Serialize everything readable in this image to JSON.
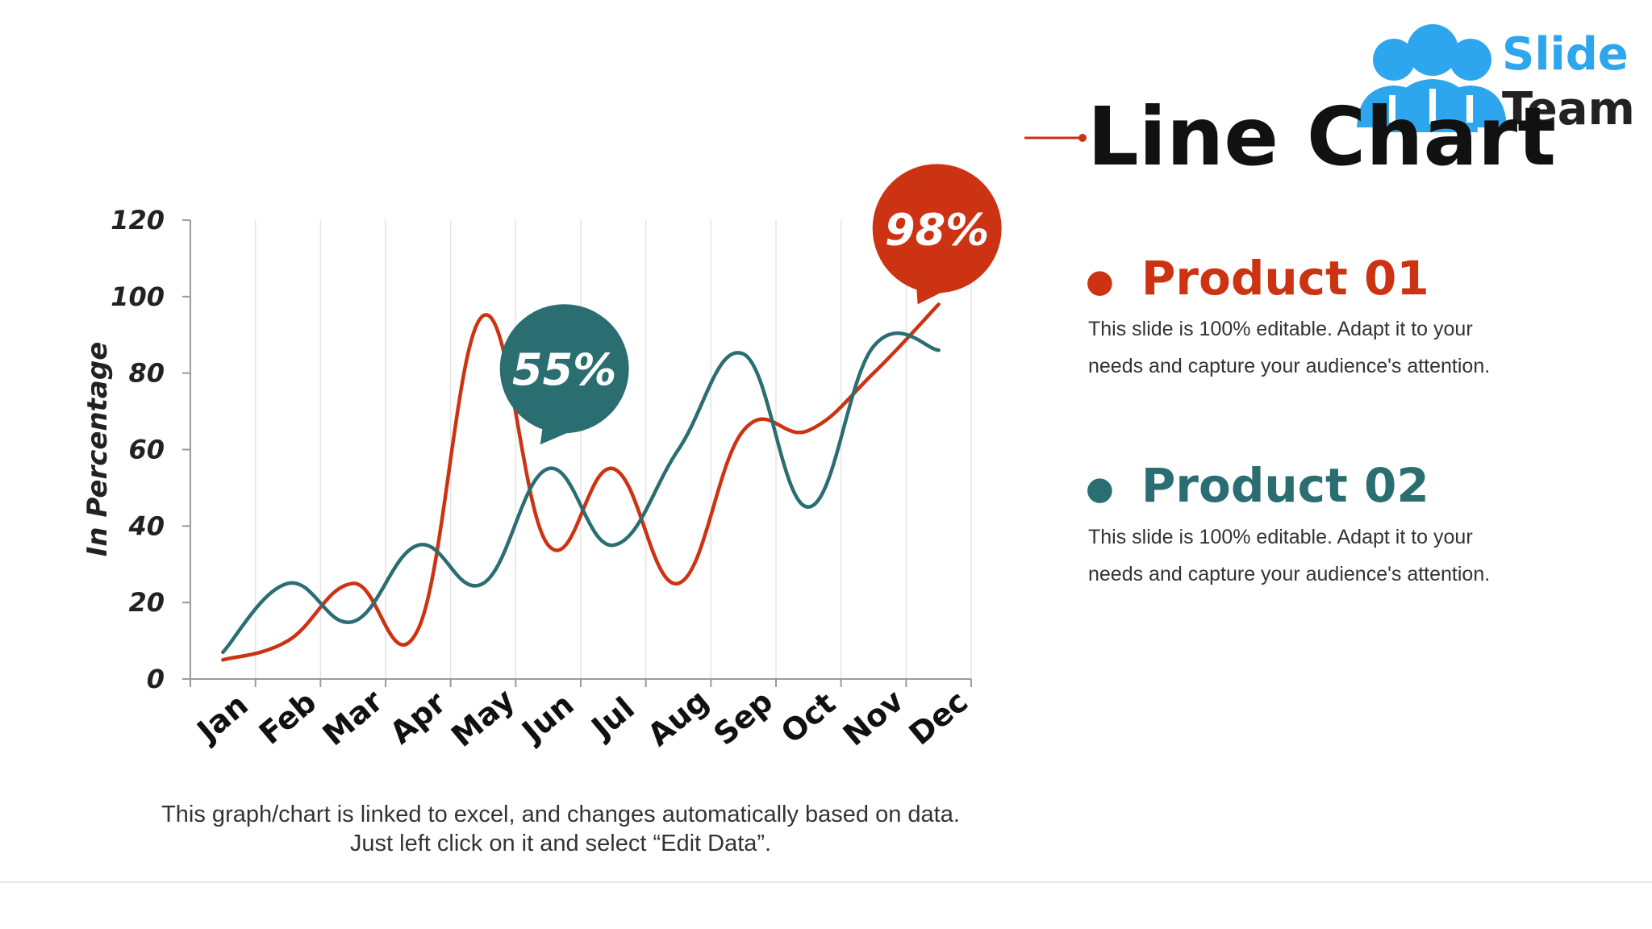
{
  "logo": {
    "line1": "Slide",
    "line2": "Team",
    "accent": "#2ea6ee"
  },
  "title": "Line Chart",
  "products": [
    {
      "name": "Product 01",
      "color": "#cc3312",
      "description": "This slide is 100% editable. Adapt it to your needs and capture your audience's attention."
    },
    {
      "name": "Product 02",
      "color": "#2b6e72",
      "description": "This slide is 100% editable. Adapt it to your needs and capture your audience's attention."
    }
  ],
  "footnote": "This graph/chart is linked to excel, and changes automatically based on data. Just left click on it and select “Edit Data”.",
  "chart_data": {
    "type": "line",
    "title": "",
    "xlabel": "",
    "ylabel": "In Percentage",
    "ylim": [
      0,
      120
    ],
    "yticks": [
      0,
      20,
      40,
      60,
      80,
      100,
      120
    ],
    "grid": "vertical",
    "legend": "none",
    "categories": [
      "Jan",
      "Feb",
      "Mar",
      "Apr",
      "May",
      "Jun",
      "Jul",
      "Aug",
      "Sep",
      "Oct",
      "Nov",
      "Dec"
    ],
    "series": [
      {
        "name": "Product 01",
        "color": "#cc3312",
        "values": [
          5,
          10,
          25,
          13,
          95,
          35,
          55,
          25,
          65,
          65,
          80,
          98
        ]
      },
      {
        "name": "Product 02",
        "color": "#2b6e72",
        "values": [
          7,
          25,
          15,
          35,
          25,
          55,
          35,
          60,
          85,
          45,
          87,
          86
        ]
      }
    ],
    "annotations": [
      {
        "text": "98%",
        "series": 0,
        "category": "Dec",
        "color": "#cc3312"
      },
      {
        "text": "55%",
        "series": 1,
        "category": "Jun",
        "color": "#2b6e72"
      }
    ]
  }
}
